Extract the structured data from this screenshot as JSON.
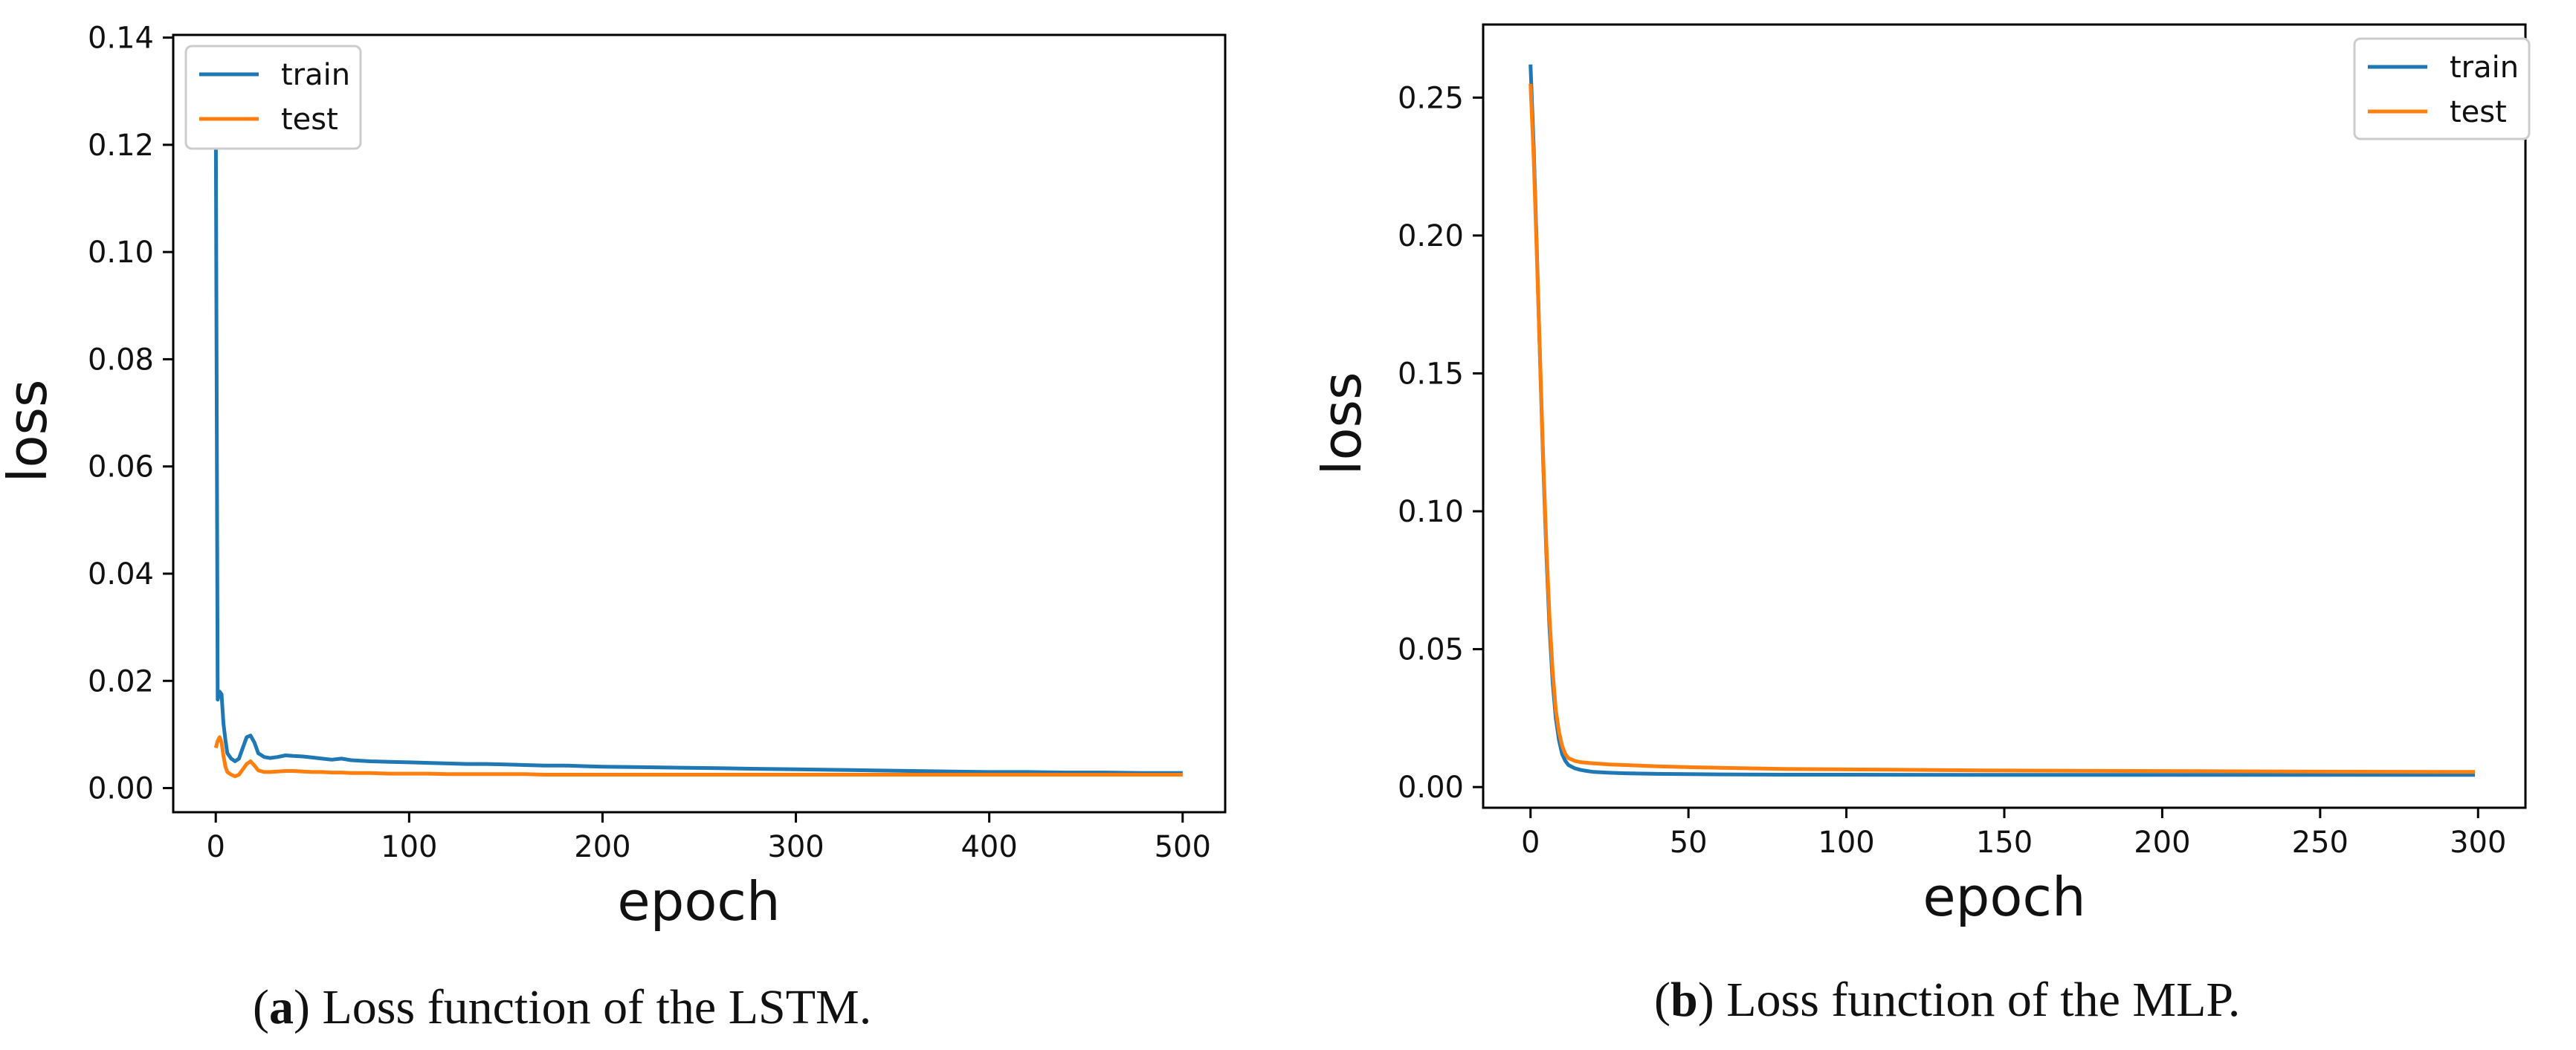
{
  "chart_data": [
    {
      "type": "line",
      "caption": {
        "tag": "a",
        "text": "Loss function of the LSTM."
      },
      "xlabel": "epoch",
      "ylabel": "loss",
      "xlim": [
        -22,
        522
      ],
      "ylim": [
        -0.0045,
        0.1405
      ],
      "xticks": [
        0,
        100,
        200,
        300,
        400,
        500
      ],
      "yticks": [
        0.0,
        0.02,
        0.04,
        0.06,
        0.08,
        0.1,
        0.12,
        0.14
      ],
      "ytick_labels": [
        "0.00",
        "0.02",
        "0.04",
        "0.06",
        "0.08",
        "0.10",
        "0.12",
        "0.14"
      ],
      "legend_position": "top-left",
      "series": [
        {
          "name": "train",
          "color": "#1f77b4",
          "x": [
            0,
            1,
            2,
            3,
            4,
            5,
            6,
            8,
            10,
            12,
            14,
            16,
            18,
            20,
            22,
            25,
            28,
            32,
            36,
            40,
            45,
            50,
            55,
            60,
            65,
            70,
            80,
            90,
            100,
            110,
            120,
            130,
            140,
            150,
            160,
            170,
            180,
            190,
            200,
            220,
            240,
            260,
            280,
            300,
            320,
            340,
            360,
            380,
            400,
            420,
            440,
            460,
            480,
            500
          ],
          "y": [
            0.128,
            0.0165,
            0.018,
            0.0175,
            0.012,
            0.009,
            0.0065,
            0.0055,
            0.005,
            0.0055,
            0.0075,
            0.0095,
            0.0098,
            0.0085,
            0.0065,
            0.0058,
            0.0056,
            0.0058,
            0.0061,
            0.006,
            0.0059,
            0.0057,
            0.0055,
            0.0053,
            0.0055,
            0.0052,
            0.005,
            0.0049,
            0.0048,
            0.0047,
            0.0046,
            0.0045,
            0.0045,
            0.0044,
            0.0043,
            0.0042,
            0.0042,
            0.0041,
            0.004,
            0.0039,
            0.0038,
            0.0037,
            0.0036,
            0.0035,
            0.0034,
            0.0033,
            0.0032,
            0.0031,
            0.003,
            0.003,
            0.0029,
            0.0029,
            0.0028,
            0.0028
          ]
        },
        {
          "name": "test",
          "color": "#ff7f0e",
          "x": [
            0,
            1,
            2,
            3,
            4,
            5,
            6,
            8,
            10,
            12,
            14,
            16,
            18,
            20,
            22,
            25,
            28,
            32,
            36,
            40,
            45,
            50,
            55,
            60,
            65,
            70,
            80,
            90,
            100,
            110,
            120,
            130,
            140,
            150,
            160,
            170,
            180,
            190,
            200,
            220,
            240,
            260,
            280,
            300,
            320,
            340,
            360,
            380,
            400,
            420,
            440,
            460,
            480,
            500
          ],
          "y": [
            0.0075,
            0.0088,
            0.0095,
            0.0085,
            0.006,
            0.004,
            0.003,
            0.0025,
            0.0022,
            0.0025,
            0.0035,
            0.0045,
            0.005,
            0.0042,
            0.0033,
            0.003,
            0.003,
            0.0031,
            0.0032,
            0.0032,
            0.0031,
            0.003,
            0.003,
            0.0029,
            0.0029,
            0.0028,
            0.0028,
            0.0027,
            0.0027,
            0.0027,
            0.0026,
            0.0026,
            0.0026,
            0.0026,
            0.0026,
            0.0025,
            0.0025,
            0.0025,
            0.0025,
            0.0025,
            0.0025,
            0.0025,
            0.0025,
            0.0025,
            0.0025,
            0.0025,
            0.0025,
            0.0025,
            0.0025,
            0.0025,
            0.0025,
            0.0025,
            0.0025,
            0.0025
          ]
        }
      ]
    },
    {
      "type": "line",
      "caption": {
        "tag": "b",
        "text": "Loss function of the MLP."
      },
      "xlabel": "epoch",
      "ylabel": "loss",
      "xlim": [
        -15,
        315
      ],
      "ylim": [
        -0.0075,
        0.2765
      ],
      "xticks": [
        0,
        50,
        100,
        150,
        200,
        250,
        300
      ],
      "yticks": [
        0.0,
        0.05,
        0.1,
        0.15,
        0.2,
        0.25
      ],
      "ytick_labels": [
        "0.00",
        "0.05",
        "0.10",
        "0.15",
        "0.20",
        "0.25"
      ],
      "legend_position": "top-right",
      "series": [
        {
          "name": "train",
          "color": "#1f77b4",
          "x": [
            0,
            1,
            2,
            3,
            4,
            5,
            6,
            7,
            8,
            9,
            10,
            11,
            12,
            14,
            16,
            18,
            20,
            25,
            30,
            40,
            50,
            60,
            80,
            100,
            150,
            200,
            250,
            299
          ],
          "y": [
            0.262,
            0.232,
            0.195,
            0.155,
            0.118,
            0.085,
            0.058,
            0.038,
            0.025,
            0.017,
            0.012,
            0.0095,
            0.008,
            0.0068,
            0.0062,
            0.0058,
            0.0055,
            0.0052,
            0.005,
            0.0048,
            0.0047,
            0.0046,
            0.0045,
            0.0045,
            0.0044,
            0.0044,
            0.0044,
            0.0044
          ]
        },
        {
          "name": "test",
          "color": "#ff7f0e",
          "x": [
            0,
            1,
            2,
            3,
            4,
            5,
            6,
            7,
            8,
            9,
            10,
            11,
            12,
            14,
            16,
            18,
            20,
            25,
            30,
            40,
            50,
            60,
            80,
            100,
            150,
            200,
            250,
            299
          ],
          "y": [
            0.255,
            0.228,
            0.193,
            0.156,
            0.12,
            0.088,
            0.062,
            0.042,
            0.028,
            0.02,
            0.015,
            0.012,
            0.0105,
            0.0095,
            0.009,
            0.0088,
            0.0086,
            0.0082,
            0.008,
            0.0075,
            0.0072,
            0.007,
            0.0066,
            0.0064,
            0.006,
            0.0058,
            0.0056,
            0.0055
          ]
        }
      ]
    }
  ]
}
